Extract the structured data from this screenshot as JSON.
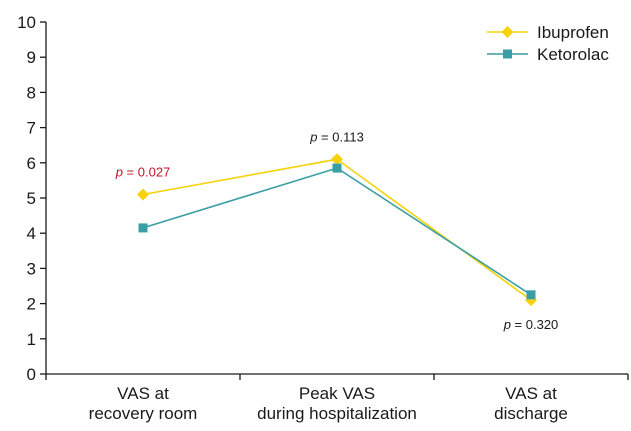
{
  "chart_data": {
    "type": "line",
    "title": "",
    "xlabel": "",
    "ylabel": "",
    "ylim": [
      0,
      10
    ],
    "yticks": [
      0,
      1,
      2,
      3,
      4,
      5,
      6,
      7,
      8,
      9,
      10
    ],
    "grid": false,
    "legend_position": "top-right",
    "categories": [
      [
        "VAS at",
        "recovery room"
      ],
      [
        "Peak VAS",
        "during hospitalization"
      ],
      [
        "VAS at",
        "discharge"
      ]
    ],
    "series": [
      {
        "name": "Ibuprofen",
        "values": [
          5.1,
          6.1,
          2.1
        ],
        "color": "#f5d20a",
        "marker": "diamond"
      },
      {
        "name": "Ketorolac",
        "values": [
          4.15,
          5.85,
          2.25
        ],
        "color": "#3a9ea5",
        "marker": "square"
      }
    ],
    "annotations": [
      {
        "category_index": 0,
        "p_label": "p",
        "rest": " = 0.027",
        "color": "#c0152a",
        "position": "above"
      },
      {
        "category_index": 1,
        "p_label": "p",
        "rest": " = 0.113",
        "color": "#1a1a1a",
        "position": "above"
      },
      {
        "category_index": 2,
        "p_label": "p",
        "rest": " = 0.320",
        "color": "#1a1a1a",
        "position": "below"
      }
    ]
  }
}
